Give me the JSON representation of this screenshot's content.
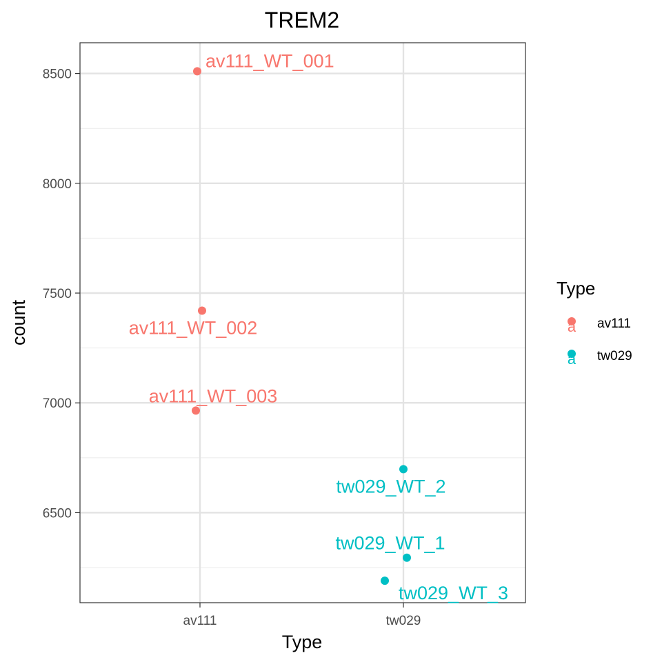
{
  "chart_data": {
    "type": "scatter",
    "title": "TREM2",
    "xlabel": "Type",
    "ylabel": "count",
    "categories": [
      "av111",
      "tw029"
    ],
    "ylim": [
      6090,
      8640
    ],
    "yticks": [
      6500,
      7000,
      7500,
      8000,
      8500
    ],
    "grid": true,
    "legend": {
      "title": "Type",
      "position": "right",
      "entries": [
        {
          "name": "av111",
          "color": "#F8766D"
        },
        {
          "name": "tw029",
          "color": "#00BFC4"
        }
      ]
    },
    "series": [
      {
        "name": "av111",
        "color": "#F8766D",
        "points": [
          {
            "category": "av111",
            "y": 8510,
            "label": "av111_WT_001"
          },
          {
            "category": "av111",
            "y": 7420,
            "label": "av111_WT_002"
          },
          {
            "category": "av111",
            "y": 6965,
            "label": "av111_WT_003"
          }
        ]
      },
      {
        "name": "tw029",
        "color": "#00BFC4",
        "points": [
          {
            "category": "tw029",
            "y": 6698,
            "label": "tw029_WT_2"
          },
          {
            "category": "tw029",
            "y": 6295,
            "label": "tw029_WT_1"
          },
          {
            "category": "tw029",
            "y": 6190,
            "label": "tw029_WT_3"
          }
        ]
      }
    ]
  }
}
